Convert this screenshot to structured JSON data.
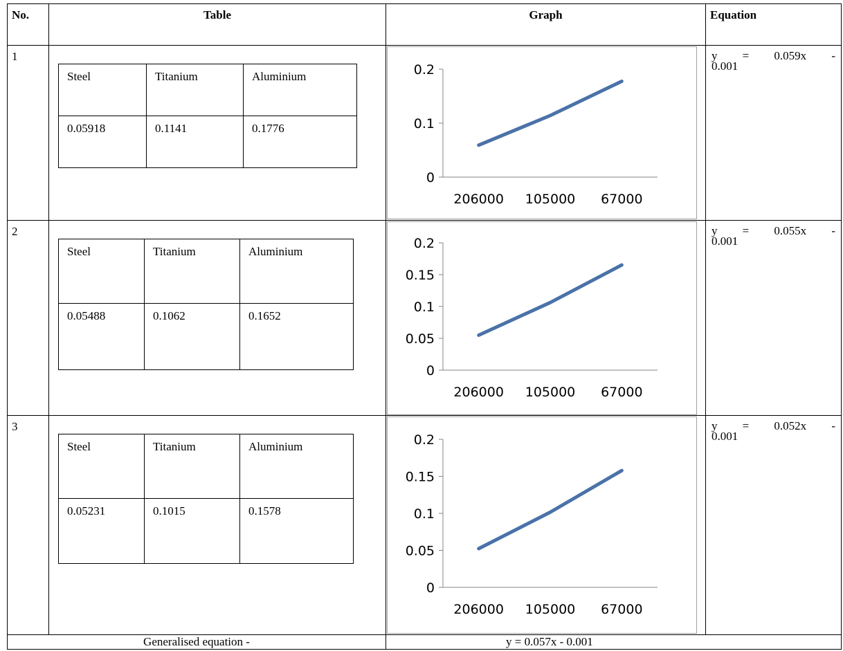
{
  "headers": {
    "no": "No.",
    "table": "Table",
    "graph": "Graph",
    "equation": "Equation"
  },
  "rows": [
    {
      "num": "1",
      "labels": [
        "Steel",
        "Titanium",
        "Aluminium"
      ],
      "values": [
        "0.05918",
        "0.1141",
        "0.1776"
      ],
      "equation": {
        "y": "y",
        "eq": "=",
        "rhs": "0.059x",
        "minus": "-",
        "const": "0.001"
      }
    },
    {
      "num": "2",
      "labels": [
        "Steel",
        "Titanium",
        "Aluminium"
      ],
      "values": [
        "0.05488",
        "0.1062",
        "0.1652"
      ],
      "equation": {
        "y": "y",
        "eq": "=",
        "rhs": "0.055x",
        "minus": "-",
        "const": "0.001"
      }
    },
    {
      "num": "3",
      "labels": [
        "Steel",
        "Titanium",
        "Aluminium"
      ],
      "values": [
        "0.05231",
        "0.1015",
        "0.1578"
      ],
      "equation": {
        "y": "y",
        "eq": "=",
        "rhs": "0.052x",
        "minus": "-",
        "const": "0.001"
      }
    }
  ],
  "footer": {
    "label": "Generalised equation -",
    "equation": "y = 0.057x - 0.001"
  },
  "chart_data": [
    {
      "type": "line",
      "categories": [
        "206000",
        "105000",
        "67000"
      ],
      "series": [
        {
          "values": [
            0.05918,
            0.1141,
            0.1776
          ]
        }
      ],
      "ylim": [
        0,
        0.2
      ],
      "yticks": [
        "0",
        "0.1",
        "0.2"
      ],
      "color": "#4a72a8"
    },
    {
      "type": "line",
      "categories": [
        "206000",
        "105000",
        "67000"
      ],
      "series": [
        {
          "values": [
            0.05488,
            0.1062,
            0.1652
          ]
        }
      ],
      "ylim": [
        0,
        0.2
      ],
      "yticks": [
        "0",
        "0.05",
        "0.1",
        "0.15",
        "0.2"
      ],
      "color": "#4a72a8"
    },
    {
      "type": "line",
      "categories": [
        "206000",
        "105000",
        "67000"
      ],
      "series": [
        {
          "values": [
            0.05231,
            0.1015,
            0.1578
          ]
        }
      ],
      "ylim": [
        0,
        0.2
      ],
      "yticks": [
        "0",
        "0.05",
        "0.1",
        "0.15",
        "0.2"
      ],
      "color": "#4a72a8"
    }
  ]
}
